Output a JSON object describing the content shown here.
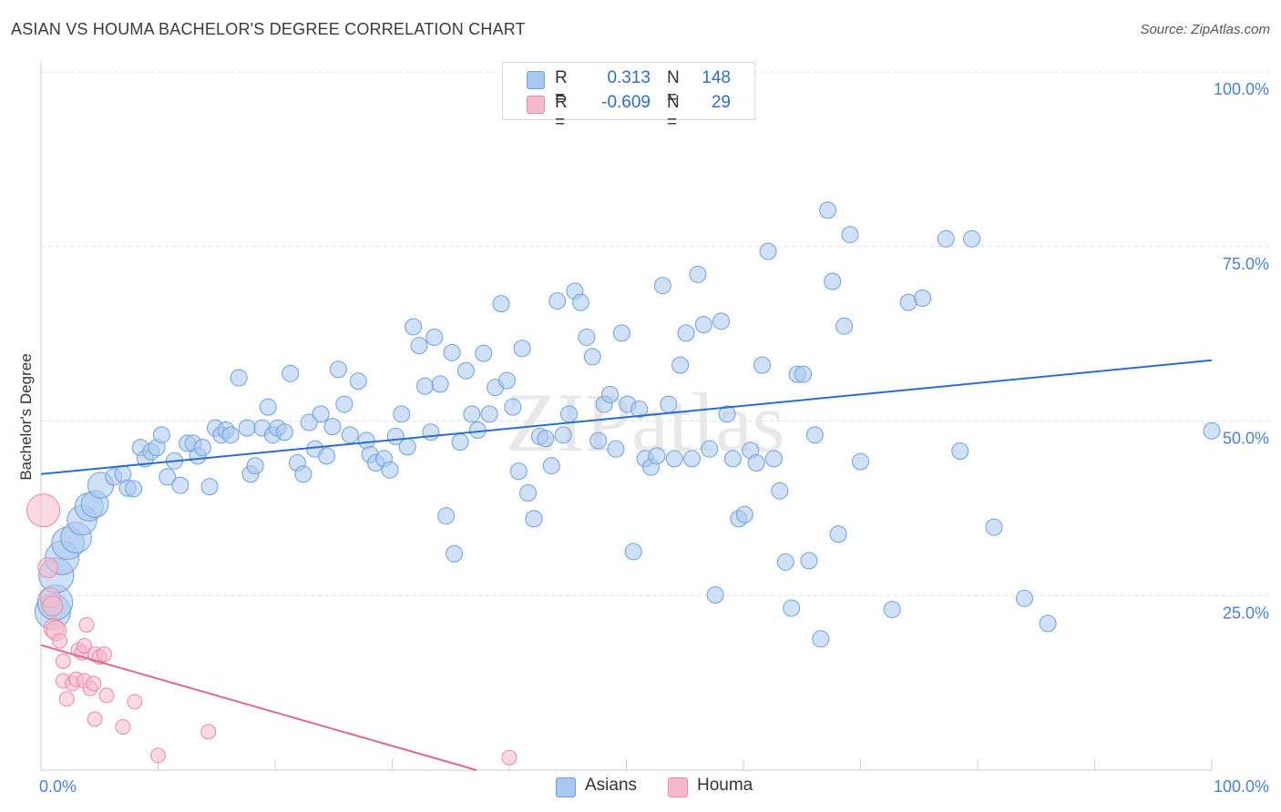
{
  "title": "ASIAN VS HOUMA BACHELOR'S DEGREE CORRELATION CHART",
  "source": "Source: ZipAtlas.com",
  "watermark": "ZIPatlas",
  "legend": {
    "rows": [
      {
        "r_label": "R =",
        "r_value": "0.313",
        "n_label": "N =",
        "n_value": "148"
      },
      {
        "r_label": "R =",
        "r_value": "-0.609",
        "n_label": "N =",
        "n_value": "29"
      }
    ]
  },
  "bottom_legend": [
    "Asians",
    "Houma"
  ],
  "colors": {
    "asians_fill": "#a9c8f0",
    "asians_stroke": "#6f9fdc",
    "asians_line": "#2a6dd0",
    "houma_fill": "#f6b9cc",
    "houma_stroke": "#e88aa8",
    "houma_line": "#e06690",
    "tick": "#4a7fd6",
    "grid": "#dddddd"
  },
  "chart_data": {
    "type": "scatter",
    "title": "ASIAN VS HOUMA BACHELOR'S DEGREE CORRELATION CHART",
    "xlabel": "",
    "ylabel": "Bachelor's Degree",
    "xlim": [
      0,
      100
    ],
    "ylim": [
      0,
      100
    ],
    "x_tick_labels": [
      "0.0%",
      "100.0%"
    ],
    "y_tick_labels": [
      "100.0%",
      "75.0%",
      "50.0%",
      "25.0%"
    ],
    "y_ticks": [
      100,
      75,
      50,
      25
    ],
    "grid": true,
    "series": [
      {
        "name": "Asians",
        "r": 0.313,
        "n": 148,
        "trend": {
          "x": [
            0,
            100
          ],
          "y": [
            42.4,
            58.7
          ]
        },
        "points": [
          [
            1.0,
            22.7
          ],
          [
            1.2,
            24.0
          ],
          [
            1.3,
            27.9
          ],
          [
            1.8,
            30.4
          ],
          [
            2.3,
            32.5
          ],
          [
            3.0,
            33.3
          ],
          [
            3.5,
            35.8
          ],
          [
            4.1,
            37.7
          ],
          [
            4.6,
            38.1
          ],
          [
            5.1,
            40.8
          ],
          [
            6.2,
            42.0
          ],
          [
            7.0,
            42.4
          ],
          [
            7.4,
            40.4
          ],
          [
            7.9,
            40.3
          ],
          [
            8.5,
            46.2
          ],
          [
            8.9,
            44.6
          ],
          [
            9.4,
            45.6
          ],
          [
            9.9,
            46.2
          ],
          [
            10.3,
            48.0
          ],
          [
            10.8,
            42.0
          ],
          [
            11.4,
            44.3
          ],
          [
            11.9,
            40.8
          ],
          [
            12.5,
            46.8
          ],
          [
            13.0,
            46.8
          ],
          [
            13.4,
            45.0
          ],
          [
            13.8,
            46.2
          ],
          [
            14.4,
            40.6
          ],
          [
            14.9,
            49.0
          ],
          [
            15.4,
            48.0
          ],
          [
            15.8,
            48.7
          ],
          [
            16.2,
            48.0
          ],
          [
            16.9,
            56.2
          ],
          [
            17.6,
            49.0
          ],
          [
            17.9,
            42.4
          ],
          [
            18.3,
            43.6
          ],
          [
            18.9,
            49.0
          ],
          [
            19.4,
            52.0
          ],
          [
            19.8,
            48.0
          ],
          [
            20.2,
            49.0
          ],
          [
            20.8,
            48.4
          ],
          [
            21.3,
            56.8
          ],
          [
            21.9,
            44.0
          ],
          [
            22.4,
            42.4
          ],
          [
            22.9,
            49.8
          ],
          [
            23.4,
            46.0
          ],
          [
            23.9,
            51.0
          ],
          [
            24.4,
            45.0
          ],
          [
            24.9,
            49.2
          ],
          [
            25.4,
            57.4
          ],
          [
            25.9,
            52.4
          ],
          [
            26.4,
            48.0
          ],
          [
            27.1,
            55.7
          ],
          [
            27.8,
            47.2
          ],
          [
            28.1,
            45.2
          ],
          [
            28.6,
            44.0
          ],
          [
            29.3,
            44.6
          ],
          [
            29.8,
            43.0
          ],
          [
            30.3,
            47.8
          ],
          [
            30.8,
            51.0
          ],
          [
            31.3,
            46.3
          ],
          [
            31.8,
            63.5
          ],
          [
            32.3,
            60.8
          ],
          [
            32.8,
            55.0
          ],
          [
            33.3,
            48.4
          ],
          [
            33.6,
            62.0
          ],
          [
            34.1,
            55.3
          ],
          [
            34.6,
            36.4
          ],
          [
            35.1,
            59.8
          ],
          [
            35.3,
            31.0
          ],
          [
            35.8,
            47.0
          ],
          [
            36.3,
            57.2
          ],
          [
            36.8,
            51.0
          ],
          [
            37.3,
            48.7
          ],
          [
            37.8,
            59.7
          ],
          [
            38.3,
            51.0
          ],
          [
            38.8,
            54.8
          ],
          [
            39.3,
            66.8
          ],
          [
            39.8,
            55.8
          ],
          [
            40.3,
            52.0
          ],
          [
            40.8,
            42.8
          ],
          [
            41.1,
            60.4
          ],
          [
            41.6,
            39.7
          ],
          [
            42.1,
            36.0
          ],
          [
            42.6,
            47.8
          ],
          [
            43.1,
            47.5
          ],
          [
            43.6,
            43.6
          ],
          [
            44.1,
            67.2
          ],
          [
            44.6,
            48.0
          ],
          [
            45.1,
            51.0
          ],
          [
            45.6,
            68.6
          ],
          [
            46.1,
            67.0
          ],
          [
            46.6,
            62.0
          ],
          [
            47.1,
            59.2
          ],
          [
            47.6,
            47.2
          ],
          [
            48.1,
            52.4
          ],
          [
            48.6,
            53.8
          ],
          [
            49.1,
            46.0
          ],
          [
            49.6,
            62.6
          ],
          [
            50.1,
            52.4
          ],
          [
            50.6,
            31.3
          ],
          [
            51.1,
            51.7
          ],
          [
            51.6,
            44.6
          ],
          [
            52.1,
            43.4
          ],
          [
            52.6,
            45.0
          ],
          [
            53.1,
            69.4
          ],
          [
            53.6,
            52.4
          ],
          [
            54.1,
            44.6
          ],
          [
            54.6,
            58.0
          ],
          [
            55.1,
            62.6
          ],
          [
            55.6,
            44.6
          ],
          [
            56.1,
            71.0
          ],
          [
            56.6,
            63.8
          ],
          [
            57.1,
            46.0
          ],
          [
            57.6,
            25.1
          ],
          [
            58.1,
            64.3
          ],
          [
            58.6,
            51.0
          ],
          [
            59.1,
            44.6
          ],
          [
            59.6,
            36.0
          ],
          [
            60.1,
            36.6
          ],
          [
            60.6,
            45.8
          ],
          [
            61.1,
            44.0
          ],
          [
            61.6,
            58.0
          ],
          [
            62.1,
            74.3
          ],
          [
            62.6,
            44.6
          ],
          [
            63.1,
            40.0
          ],
          [
            63.6,
            29.8
          ],
          [
            64.1,
            23.2
          ],
          [
            64.6,
            56.7
          ],
          [
            65.1,
            56.7
          ],
          [
            65.6,
            30.0
          ],
          [
            66.1,
            48.0
          ],
          [
            66.6,
            18.8
          ],
          [
            67.2,
            80.2
          ],
          [
            67.6,
            70.0
          ],
          [
            68.1,
            33.8
          ],
          [
            68.6,
            63.6
          ],
          [
            69.1,
            76.7
          ],
          [
            70.0,
            44.2
          ],
          [
            72.7,
            23.0
          ],
          [
            74.1,
            67.0
          ],
          [
            75.3,
            67.6
          ],
          [
            77.3,
            76.1
          ],
          [
            78.5,
            45.7
          ],
          [
            79.5,
            76.1
          ],
          [
            81.4,
            34.8
          ],
          [
            84.0,
            24.6
          ],
          [
            86.0,
            21.0
          ],
          [
            100.0,
            48.6
          ]
        ]
      },
      {
        "name": "Houma",
        "r": -0.609,
        "n": 29,
        "trend": {
          "x": [
            0,
            37.2
          ],
          "y": [
            17.9,
            0
          ]
        },
        "points": [
          [
            0.2,
            37.2
          ],
          [
            0.6,
            29.0
          ],
          [
            0.8,
            24.7
          ],
          [
            1.0,
            23.5
          ],
          [
            1.1,
            20.3
          ],
          [
            1.3,
            20.0
          ],
          [
            1.6,
            18.5
          ],
          [
            1.9,
            15.6
          ],
          [
            1.9,
            12.8
          ],
          [
            2.2,
            10.2
          ],
          [
            2.7,
            12.4
          ],
          [
            3.0,
            13.0
          ],
          [
            3.2,
            17.2
          ],
          [
            3.5,
            16.8
          ],
          [
            3.7,
            17.8
          ],
          [
            3.7,
            12.8
          ],
          [
            3.9,
            20.8
          ],
          [
            4.2,
            11.7
          ],
          [
            4.5,
            12.4
          ],
          [
            4.6,
            7.3
          ],
          [
            4.6,
            16.6
          ],
          [
            5.0,
            16.2
          ],
          [
            5.4,
            16.6
          ],
          [
            5.6,
            10.7
          ],
          [
            7.0,
            6.2
          ],
          [
            8.0,
            9.8
          ],
          [
            10.0,
            2.1
          ],
          [
            14.3,
            5.5
          ],
          [
            40.0,
            1.8
          ]
        ]
      }
    ]
  }
}
